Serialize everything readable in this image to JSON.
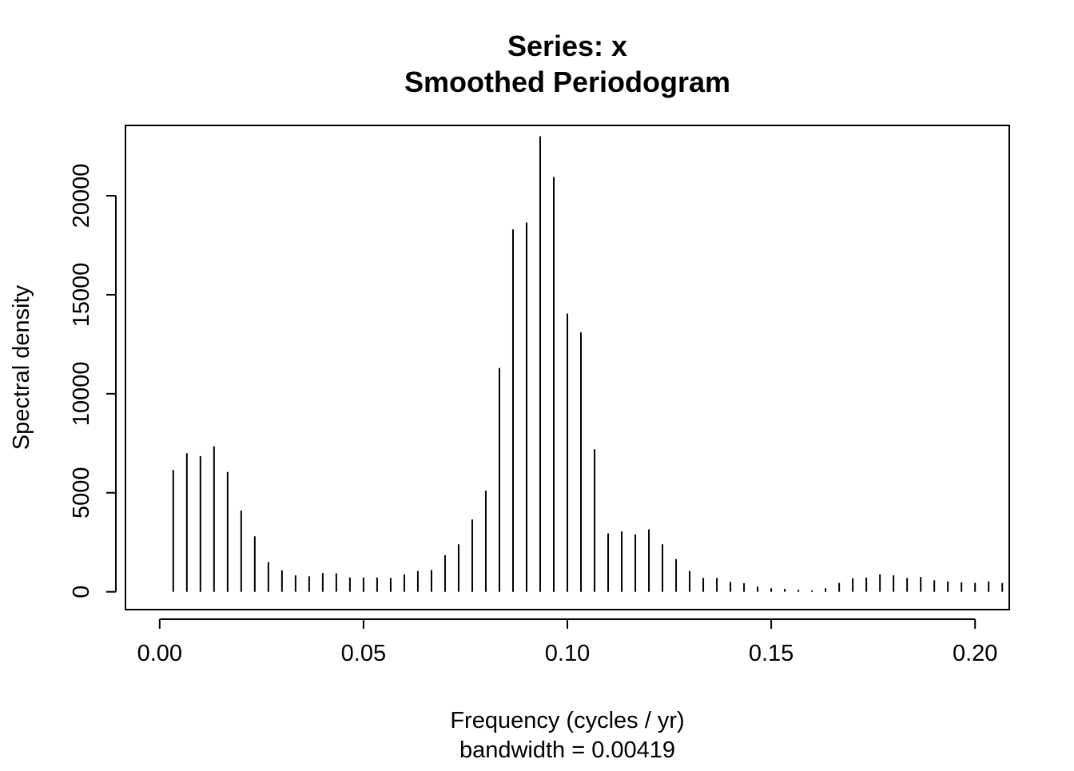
{
  "chart_data": {
    "type": "bar",
    "title": "Series: x",
    "subtitle": "Smoothed Periodogram",
    "xlabel": "Frequency (cycles / yr)",
    "ylabel": "Spectral density",
    "sub_xlabel": "bandwidth = 0.00419",
    "xlim": [
      -0.00839,
      0.20839
    ],
    "ylim": [
      -900,
      23550
    ],
    "x_ticks": [
      "0.00",
      "0.05",
      "0.10",
      "0.15",
      "0.20"
    ],
    "y_ticks": [
      "0",
      "5000",
      "10000",
      "15000",
      "20000"
    ],
    "grid": false,
    "legend": "none",
    "series": [
      {
        "x": [
          0.00333,
          0.00667,
          0.01,
          0.01333,
          0.01667,
          0.02,
          0.02333,
          0.02667,
          0.03,
          0.03333,
          0.03667,
          0.04,
          0.04333,
          0.04667,
          0.05,
          0.05333,
          0.05667,
          0.06,
          0.06333,
          0.06667,
          0.07,
          0.07333,
          0.07667,
          0.08,
          0.08333,
          0.08667,
          0.09,
          0.09333,
          0.09667,
          0.1,
          0.10333,
          0.10667,
          0.11,
          0.11333,
          0.11667,
          0.12,
          0.12333,
          0.12667,
          0.13,
          0.13333,
          0.13667,
          0.14,
          0.14333,
          0.14667,
          0.15,
          0.15333,
          0.15667,
          0.16,
          0.16333,
          0.16667,
          0.17,
          0.17333,
          0.17667,
          0.18,
          0.18333,
          0.18667,
          0.19,
          0.19333,
          0.19667,
          0.2,
          0.20333,
          0.20667
        ],
        "values": [
          6150,
          7000,
          6850,
          7350,
          6050,
          4100,
          2800,
          1500,
          1080,
          830,
          780,
          950,
          930,
          720,
          720,
          720,
          700,
          880,
          1050,
          1100,
          1850,
          2400,
          3650,
          5100,
          11300,
          18300,
          18650,
          23000,
          20950,
          14050,
          13100,
          7200,
          2950,
          3050,
          2900,
          3150,
          2400,
          1650,
          1050,
          700,
          700,
          500,
          430,
          260,
          180,
          150,
          100,
          70,
          180,
          450,
          680,
          720,
          880,
          830,
          700,
          750,
          580,
          520,
          480,
          450,
          520,
          440
        ]
      }
    ]
  }
}
